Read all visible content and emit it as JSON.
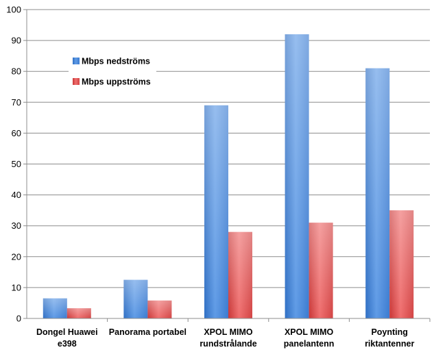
{
  "chart_data": {
    "type": "bar",
    "categories": [
      [
        "Dongel Huawei",
        "e398"
      ],
      [
        "Panorama portabel"
      ],
      [
        "XPOL MIMO",
        "rundstrålande"
      ],
      [
        "XPOL MIMO",
        "panelantenn"
      ],
      [
        "Poynting",
        "riktantenner"
      ]
    ],
    "series": [
      {
        "name": "Mbps nedströms",
        "values": [
          6.5,
          12.5,
          69,
          92,
          81
        ],
        "color": "#4a86d4"
      },
      {
        "name": "Mbps uppströms",
        "values": [
          3.3,
          5.8,
          28,
          31,
          35
        ],
        "color": "#e05252"
      }
    ],
    "ylim": [
      0,
      100
    ],
    "yticks": [
      0,
      10,
      20,
      30,
      40,
      50,
      60,
      70,
      80,
      90,
      100
    ],
    "grid": true,
    "legend": "upper-left inside plot"
  }
}
